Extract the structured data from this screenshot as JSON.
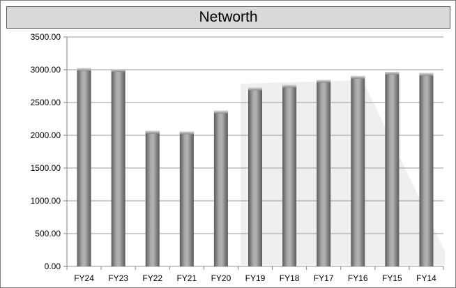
{
  "chart_data": {
    "type": "bar",
    "title": "Networth",
    "xlabel": "",
    "ylabel": "",
    "categories": [
      "FY24",
      "FY23",
      "FY22",
      "FY21",
      "FY20",
      "FY19",
      "FY18",
      "FY17",
      "FY16",
      "FY15",
      "FY14"
    ],
    "values": [
      3025,
      3010,
      2068,
      2058,
      2375,
      2727,
      2770,
      2845,
      2905,
      2968,
      2950
    ],
    "ylim": [
      0,
      3500
    ],
    "yticks": [
      "0.00",
      "500.00",
      "1000.00",
      "1500.00",
      "2000.00",
      "2500.00",
      "3000.00",
      "3500.00"
    ],
    "grid": true,
    "legend": "none",
    "colors": {
      "bar": "#8c8c8c",
      "bar_dark": "#5a5a5a",
      "bar_light": "#c8c8c8",
      "gridline": "#9a9a9a",
      "title_bg": "#d9d9d9"
    }
  }
}
